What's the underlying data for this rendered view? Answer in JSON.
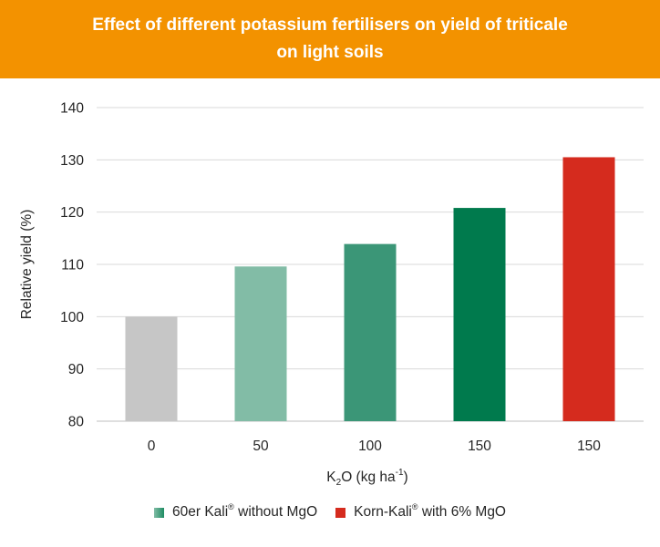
{
  "header": {
    "title_line1": "Effect of different potassium fertilisers on yield of triticale",
    "title_line2": "on light soils"
  },
  "chart_data": {
    "type": "bar",
    "categories": [
      "0",
      "50",
      "100",
      "150",
      "150"
    ],
    "values": [
      100,
      109.6,
      113.9,
      120.8,
      130.5
    ],
    "bar_colors": [
      "#c6c6c6",
      "#82bca6",
      "#3b9677",
      "#007a4d",
      "#d52b1e"
    ],
    "ylabel": "Relative yield (%)",
    "xlabel": "K2O (kg ha-1)",
    "ylim": [
      80,
      140
    ],
    "yticks": [
      80,
      90,
      100,
      110,
      120,
      130,
      140
    ],
    "grid": true
  },
  "xlabel_parts": {
    "k": "K",
    "sub": "2",
    "o": "O (kg ha",
    "sup": "-1",
    "close": ")"
  },
  "legend": {
    "item1": {
      "base": "60er Kali",
      "mark": "®",
      "rest": " without MgO",
      "color": "#1e8c62"
    },
    "item2": {
      "base": "Korn-Kali",
      "mark": "®",
      "rest": " with 6% MgO",
      "color": "#d52b1e"
    }
  }
}
